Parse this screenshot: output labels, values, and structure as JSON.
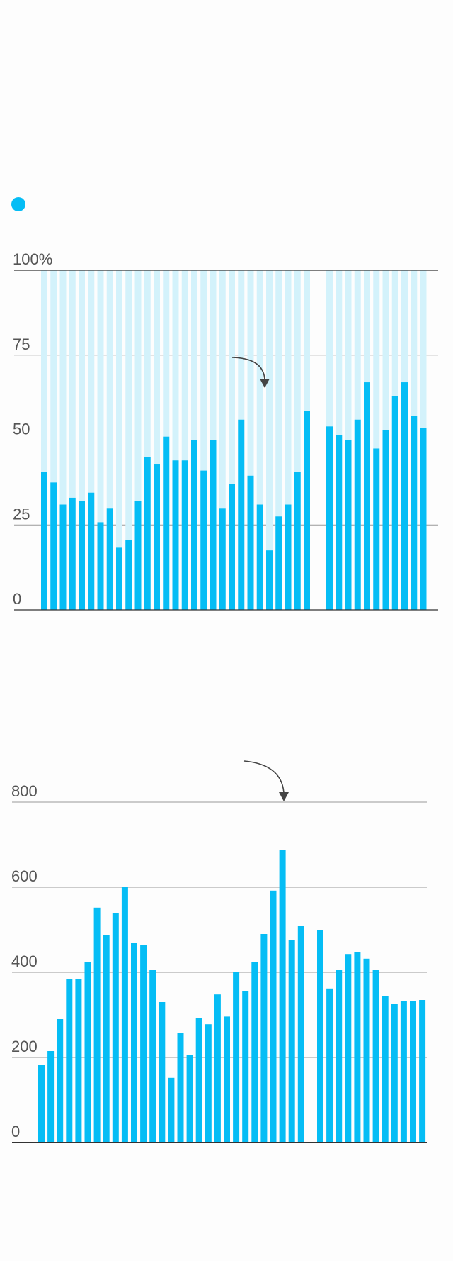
{
  "colors": {
    "bar": "#05bdf5",
    "bar_background": "#d3f2fb",
    "grid": "#999999",
    "axis": "#333333",
    "arrow": "#444444",
    "legend_dot": "#05bdf5"
  },
  "legend": {
    "marker": "dot",
    "label": ""
  },
  "chart_data": [
    {
      "type": "bar",
      "stacked_background": true,
      "ylim": [
        0,
        100
      ],
      "y_ticks": [
        0,
        25,
        50,
        75,
        100
      ],
      "y_tick_labels": [
        "0",
        "25",
        "50",
        "75",
        "100%"
      ],
      "grid": true,
      "annotation": "curved-arrow",
      "groups": [
        {
          "values": [
            40.5,
            37.5,
            31,
            33,
            32,
            34.5,
            25.8,
            30,
            18.5,
            20.5,
            32,
            45,
            43,
            51,
            44,
            44,
            50,
            41,
            50,
            30,
            37,
            56,
            39.5,
            31,
            17.5,
            27.5,
            31,
            40.5,
            58.5
          ]
        },
        {
          "values": [
            54,
            51.5,
            50,
            56,
            67,
            47.5,
            53,
            63,
            67,
            57,
            53.5
          ]
        }
      ]
    },
    {
      "type": "bar",
      "ylim": [
        0,
        800
      ],
      "y_ticks": [
        0,
        200,
        400,
        600,
        800
      ],
      "y_tick_labels": [
        "0",
        "200",
        "400",
        "600",
        "800"
      ],
      "grid": true,
      "annotation": "curved-arrow",
      "groups": [
        {
          "values": [
            182,
            215,
            290,
            385,
            385,
            425,
            552,
            488,
            540,
            600,
            470,
            465,
            405,
            330,
            152,
            258,
            205,
            293,
            278,
            348,
            296,
            400,
            356,
            425,
            490,
            592,
            688,
            475,
            510
          ]
        },
        {
          "values": [
            500,
            362,
            406,
            443,
            448,
            432,
            406,
            345,
            325,
            333,
            332,
            335
          ]
        }
      ]
    }
  ]
}
